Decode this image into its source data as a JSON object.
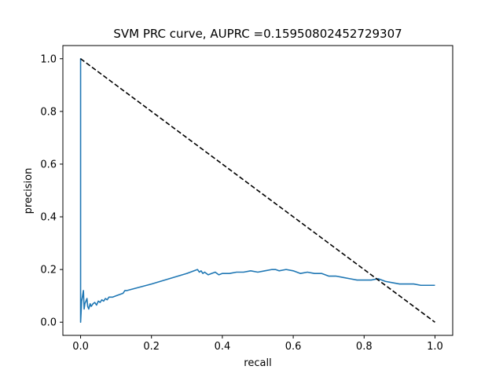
{
  "chart_data": {
    "type": "line",
    "title": "SVM PRC curve, AUPRC =0.15950802452729307",
    "xlabel": "recall",
    "ylabel": "precision",
    "xlim": [
      -0.05,
      1.05
    ],
    "ylim": [
      -0.05,
      1.05
    ],
    "xticks": [
      0.0,
      0.2,
      0.4,
      0.6,
      0.8,
      1.0
    ],
    "xtick_labels": [
      "0.0",
      "0.2",
      "0.4",
      "0.6",
      "0.8",
      "1.0"
    ],
    "yticks": [
      0.0,
      0.2,
      0.4,
      0.6,
      0.8,
      1.0
    ],
    "ytick_labels": [
      "0.0",
      "0.2",
      "0.4",
      "0.6",
      "0.8",
      "1.0"
    ],
    "grid": false,
    "series": [
      {
        "style": "solid",
        "color": "#1f77b4",
        "x": [
          0.0,
          0.0,
          0.0,
          0.003,
          0.008,
          0.01,
          0.012,
          0.018,
          0.02,
          0.023,
          0.027,
          0.03,
          0.035,
          0.04,
          0.045,
          0.05,
          0.055,
          0.06,
          0.065,
          0.07,
          0.075,
          0.08,
          0.09,
          0.1,
          0.11,
          0.12,
          0.125,
          0.13,
          0.2,
          0.25,
          0.3,
          0.33,
          0.335,
          0.34,
          0.345,
          0.35,
          0.36,
          0.37,
          0.38,
          0.39,
          0.4,
          0.42,
          0.44,
          0.46,
          0.48,
          0.5,
          0.52,
          0.54,
          0.55,
          0.56,
          0.58,
          0.6,
          0.62,
          0.64,
          0.66,
          0.68,
          0.7,
          0.72,
          0.74,
          0.76,
          0.78,
          0.8,
          0.82,
          0.84,
          0.86,
          0.88,
          0.9,
          0.92,
          0.94,
          0.96,
          0.98,
          1.0
        ],
        "y": [
          0.0,
          1.0,
          0.0,
          0.08,
          0.12,
          0.05,
          0.07,
          0.09,
          0.06,
          0.05,
          0.07,
          0.06,
          0.07,
          0.075,
          0.065,
          0.08,
          0.075,
          0.085,
          0.08,
          0.09,
          0.085,
          0.095,
          0.095,
          0.1,
          0.105,
          0.11,
          0.12,
          0.12,
          0.145,
          0.165,
          0.185,
          0.2,
          0.19,
          0.195,
          0.185,
          0.19,
          0.18,
          0.185,
          0.19,
          0.18,
          0.185,
          0.185,
          0.19,
          0.19,
          0.195,
          0.19,
          0.195,
          0.2,
          0.2,
          0.195,
          0.2,
          0.195,
          0.185,
          0.19,
          0.185,
          0.185,
          0.175,
          0.175,
          0.17,
          0.165,
          0.16,
          0.16,
          0.16,
          0.165,
          0.155,
          0.15,
          0.145,
          0.145,
          0.145,
          0.14,
          0.14,
          0.14
        ]
      },
      {
        "style": "dashed",
        "color": "#000000",
        "x": [
          0.0,
          1.0
        ],
        "y": [
          1.0,
          0.0
        ]
      }
    ]
  }
}
